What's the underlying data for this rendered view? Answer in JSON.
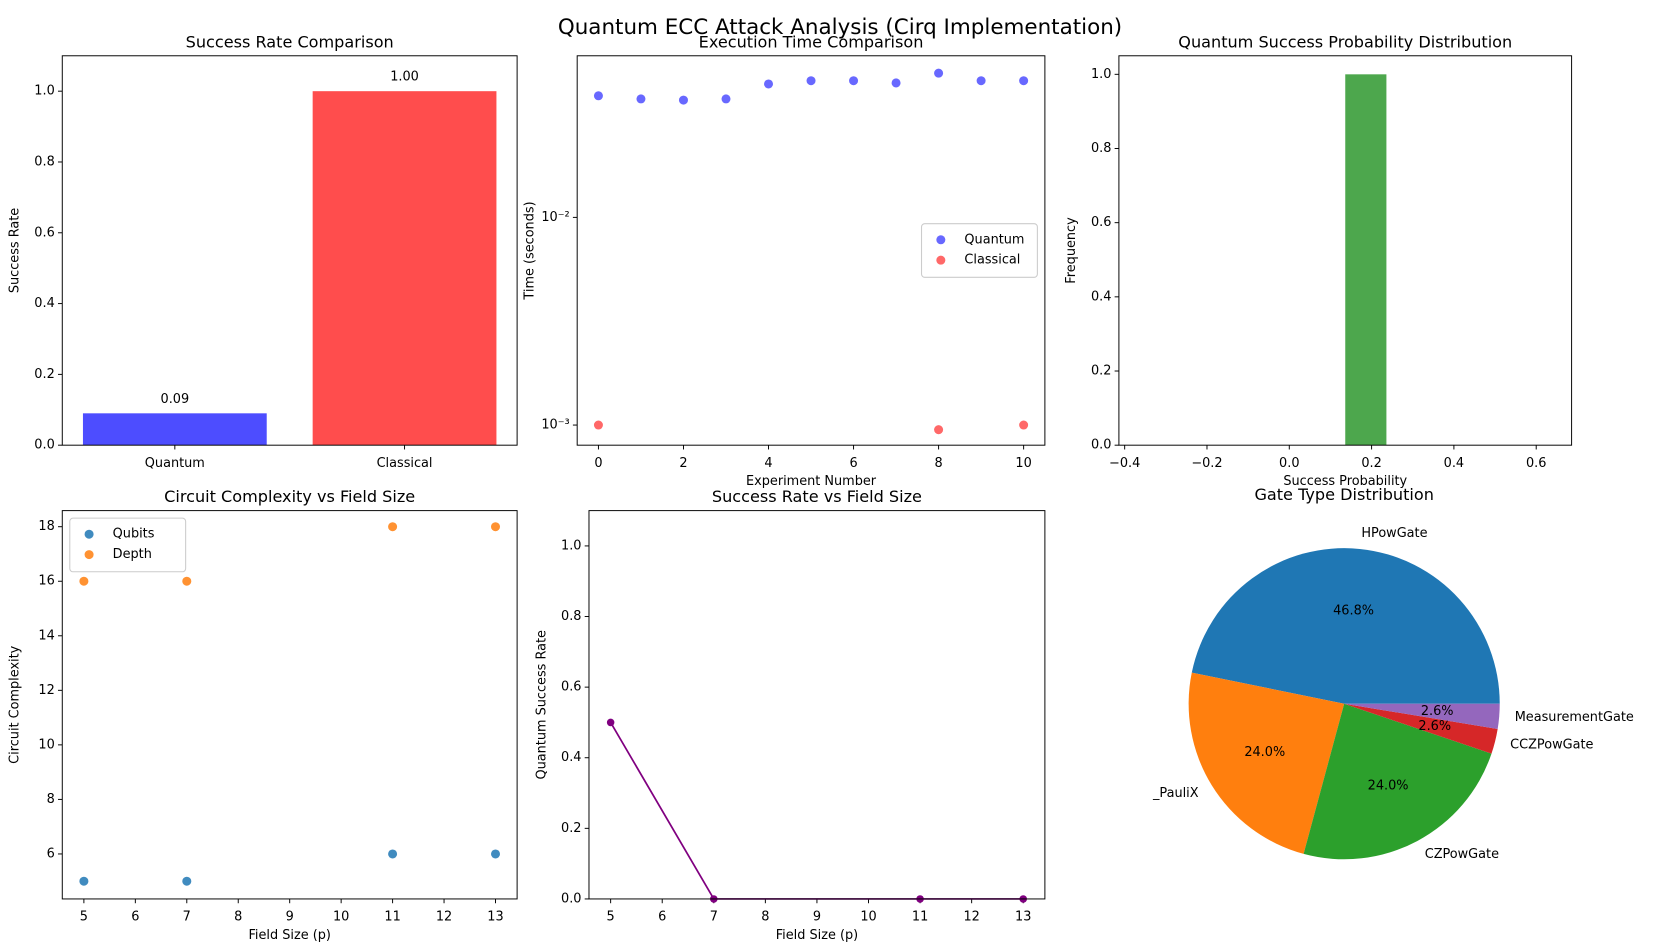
{
  "title": "Quantum ECC Attack Analysis (Cirq Implementation)",
  "chart_data": [
    {
      "type": "bar",
      "title": "Success Rate Comparison",
      "ylabel": "Success Rate",
      "categories": [
        "Quantum",
        "Classical"
      ],
      "values": [
        0.09,
        1.0
      ],
      "value_labels": [
        "0.09",
        "1.00"
      ],
      "colors": [
        "#4d4dff",
        "#ff4d4d"
      ],
      "ylim": [
        0,
        1.1
      ],
      "yticks": [
        {
          "value": 0,
          "label": "0.0"
        },
        {
          "value": 0.2,
          "label": "0.2"
        },
        {
          "value": 0.4,
          "label": "0.4"
        },
        {
          "value": 0.6,
          "label": "0.6"
        },
        {
          "value": 0.8,
          "label": "0.8"
        },
        {
          "value": 1,
          "label": "1.0"
        }
      ]
    },
    {
      "type": "scatter",
      "title": "Execution Time Comparison",
      "xlabel": "Experiment Number",
      "ylabel": "Time (seconds)",
      "log_y": true,
      "legend": "center right",
      "series": [
        {
          "name": "Quantum",
          "color": "#4d4dff",
          "x": [
            0,
            1,
            2,
            3,
            4,
            5,
            6,
            7,
            8,
            9,
            10
          ],
          "values": [
            0.0385,
            0.0372,
            0.0367,
            0.0372,
            0.0439,
            0.0455,
            0.0455,
            0.0444,
            0.0495,
            0.0455,
            0.0455
          ]
        },
        {
          "name": "Classical",
          "color": "#ff4d4d",
          "x": [
            0,
            8,
            10
          ],
          "values": [
            0.001,
            0.00095,
            0.001
          ]
        }
      ],
      "xlim": [
        -0.5,
        10.5
      ],
      "xticks": [
        0,
        2,
        4,
        6,
        8,
        10
      ],
      "ylim": [
        0.0008,
        0.06
      ],
      "yticks": [
        {
          "value": 0.001,
          "label": "10⁻³"
        },
        {
          "value": 0.01,
          "label": "10⁻²"
        }
      ]
    },
    {
      "type": "histogram",
      "title": "Quantum Success Probability Distribution",
      "xlabel": "Success Probability",
      "ylabel": "Frequency",
      "color": "#4da74d",
      "bins": [
        -0.364,
        -0.264,
        -0.164,
        -0.064,
        0.036,
        0.136,
        0.236,
        0.336,
        0.436,
        0.536,
        0.636
      ],
      "values": [
        0,
        0,
        0,
        0,
        0,
        1,
        0,
        0,
        0,
        0
      ],
      "xlim": [
        -0.414,
        0.686
      ],
      "xticks": [
        {
          "value": -0.4,
          "label": "−0.4"
        },
        {
          "value": -0.2,
          "label": "−0.2"
        },
        {
          "value": 0,
          "label": "0.0"
        },
        {
          "value": 0.2,
          "label": "0.2"
        },
        {
          "value": 0.4,
          "label": "0.4"
        },
        {
          "value": 0.6,
          "label": "0.6"
        }
      ],
      "ylim": [
        0,
        1.05
      ],
      "yticks": [
        {
          "value": 0,
          "label": "0.0"
        },
        {
          "value": 0.2,
          "label": "0.2"
        },
        {
          "value": 0.4,
          "label": "0.4"
        },
        {
          "value": 0.6,
          "label": "0.6"
        },
        {
          "value": 0.8,
          "label": "0.8"
        },
        {
          "value": 1,
          "label": "1.0"
        }
      ]
    },
    {
      "type": "scatter",
      "title": "Circuit Complexity vs Field Size",
      "xlabel": "Field Size (p)",
      "ylabel": "Circuit Complexity",
      "legend": "upper left",
      "series": [
        {
          "name": "Qubits",
          "color": "#1f77b4",
          "x": [
            5,
            7,
            11,
            13
          ],
          "values": [
            5,
            5,
            6,
            6
          ]
        },
        {
          "name": "Depth",
          "color": "#ff7f0e",
          "x": [
            5,
            7,
            11,
            13
          ],
          "values": [
            16,
            16,
            18,
            18
          ]
        }
      ],
      "xlim": [
        4.58,
        13.42
      ],
      "xticks": [
        5,
        6,
        7,
        8,
        9,
        10,
        11,
        12,
        13
      ],
      "ylim": [
        4.35,
        18.59
      ],
      "yticks": [
        6,
        8,
        10,
        12,
        14,
        16,
        18
      ]
    },
    {
      "type": "line",
      "title": "Success Rate vs Field Size",
      "xlabel": "Field Size (p)",
      "ylabel": "Quantum Success Rate",
      "color": "#800080",
      "x": [
        5,
        7,
        11,
        13
      ],
      "values": [
        0.5,
        0,
        0,
        0
      ],
      "xlim": [
        4.58,
        13.42
      ],
      "xticks": [
        5,
        6,
        7,
        8,
        9,
        10,
        11,
        12,
        13
      ],
      "ylim": [
        0,
        1.1
      ],
      "yticks": [
        {
          "value": 0,
          "label": "0.0"
        },
        {
          "value": 0.2,
          "label": "0.2"
        },
        {
          "value": 0.4,
          "label": "0.4"
        },
        {
          "value": 0.6,
          "label": "0.6"
        },
        {
          "value": 0.8,
          "label": "0.8"
        },
        {
          "value": 1,
          "label": "1.0"
        }
      ]
    },
    {
      "type": "pie",
      "title": "Gate Type Distribution",
      "categories": [
        "HPowGate",
        "_PauliX",
        "CZPowGate",
        "CCZPowGate",
        "MeasurementGate"
      ],
      "values": [
        46.8,
        24.0,
        24.0,
        2.6,
        2.6
      ],
      "value_labels": [
        "46.8%",
        "24.0%",
        "24.0%",
        "2.6%",
        "2.6%"
      ],
      "colors": [
        "#1f77b4",
        "#ff7f0e",
        "#2ca02c",
        "#d62728",
        "#9467bd"
      ]
    }
  ]
}
